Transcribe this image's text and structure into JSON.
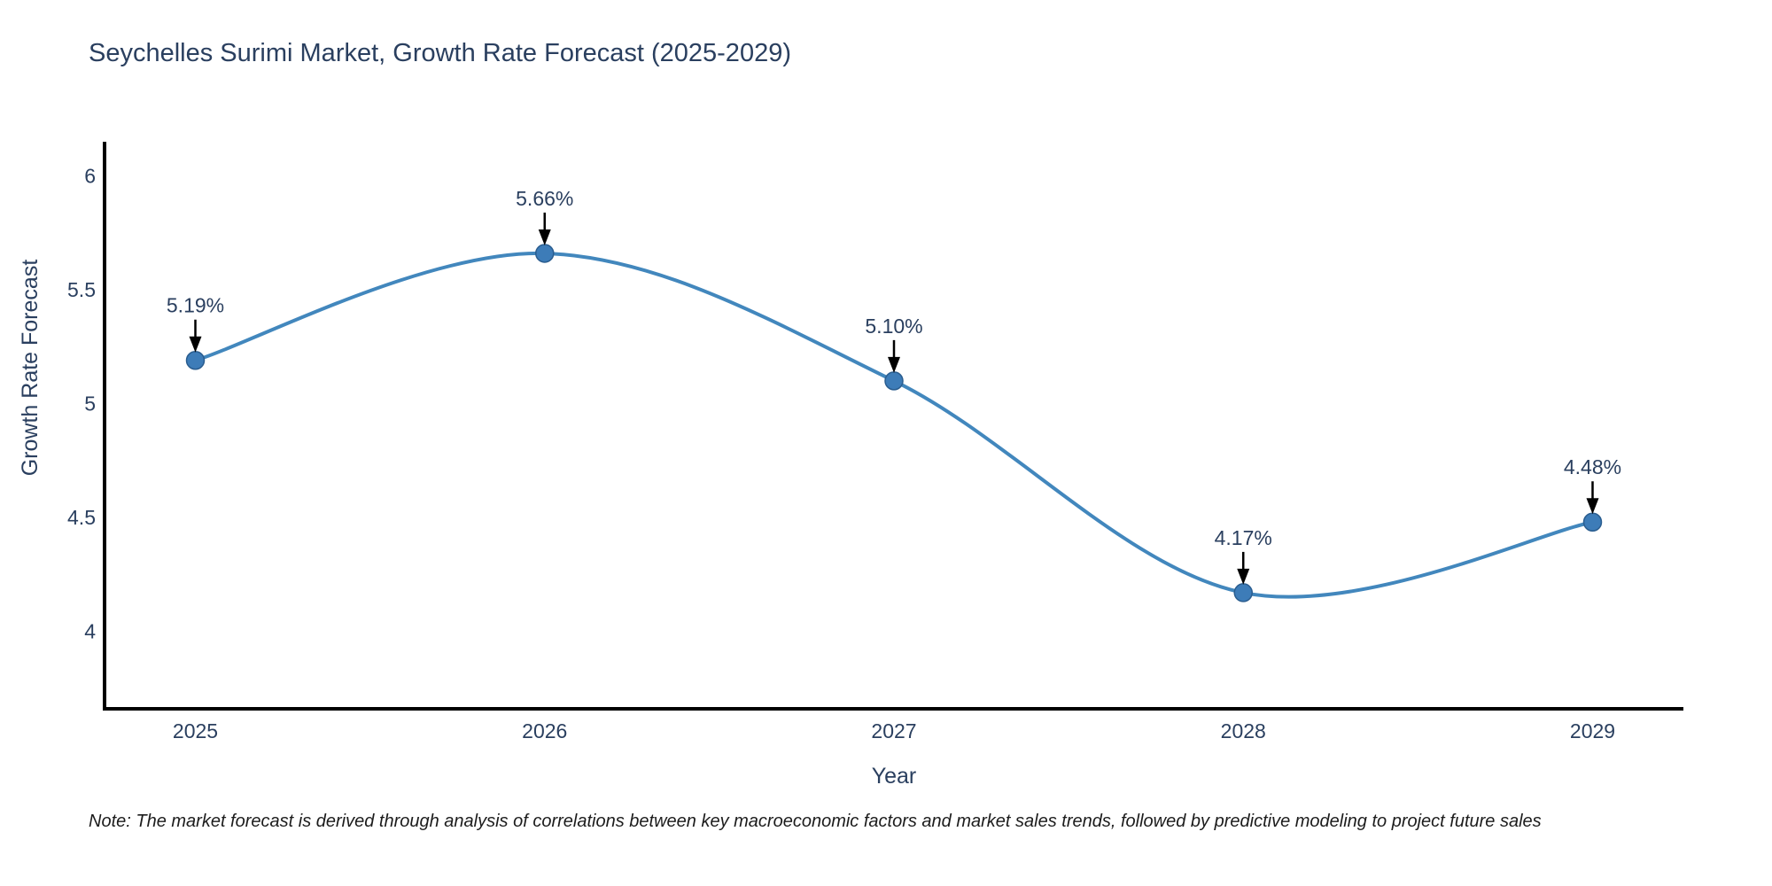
{
  "note": "Note: The market forecast is derived through analysis of correlations between key macroeconomic factors and market sales trends, followed by predictive modeling to project future sales",
  "chart_data": {
    "type": "line",
    "title": "Seychelles Surimi Market, Growth Rate Forecast (2025-2029)",
    "xlabel": "Year",
    "ylabel": "Growth Rate Forecast",
    "x": [
      2025,
      2026,
      2027,
      2028,
      2029
    ],
    "y": [
      5.19,
      5.66,
      5.1,
      4.17,
      4.48
    ],
    "point_labels": [
      "5.19%",
      "5.66%",
      "5.10%",
      "4.17%",
      "4.48%"
    ],
    "xtick_labels": [
      "2025",
      "2026",
      "2027",
      "2028",
      "2029"
    ],
    "yticks": [
      6,
      5.5,
      5,
      4.5,
      4
    ],
    "ytick_labels": [
      "6",
      "5.5",
      "5",
      "4.5",
      "4"
    ],
    "xlim": [
      2024.74,
      2029.26
    ],
    "ylim": [
      3.66,
      6.15
    ],
    "grid": false,
    "legend": "none",
    "curve": "spline",
    "colors": {
      "line": "#4287bd",
      "marker_fill": "#3d7cb8",
      "marker_edge": "#2a5d8f",
      "annotation_arrow": "#000000",
      "axis_line": "#000000",
      "text": "#2a3f5f"
    }
  }
}
